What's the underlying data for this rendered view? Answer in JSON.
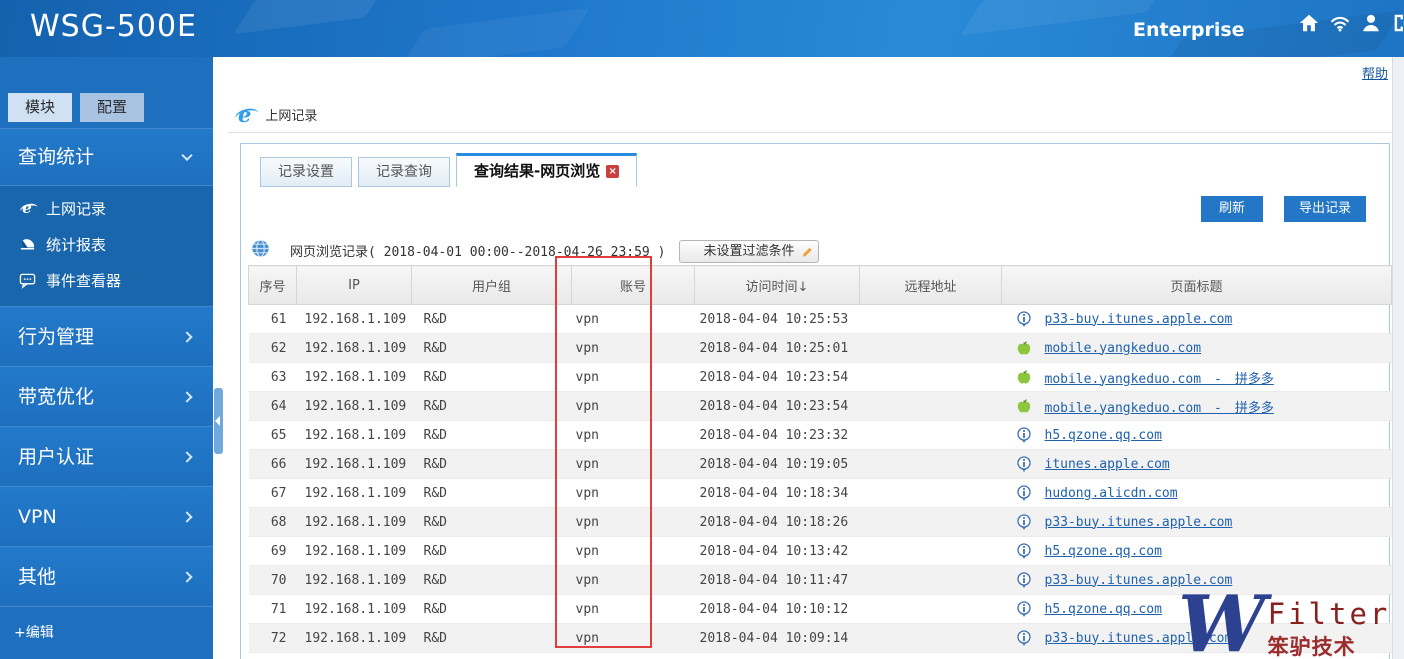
{
  "header": {
    "title": "WSG-500E",
    "edition": "Enterprise",
    "icons": [
      "home-icon",
      "wifi-icon",
      "user-icon",
      "logout-icon"
    ]
  },
  "help_label": "帮助",
  "sidebar": {
    "tabs": [
      {
        "label": "模块",
        "active": true
      },
      {
        "label": "配置",
        "active": false
      }
    ],
    "groups": [
      {
        "id": "query-stats",
        "label": "查询统计",
        "expanded": true,
        "items": [
          {
            "icon": "ie-icon",
            "label": "上网记录"
          },
          {
            "icon": "chart-icon",
            "label": "统计报表"
          },
          {
            "icon": "message-icon",
            "label": "事件查看器"
          }
        ]
      },
      {
        "id": "behavior",
        "label": "行为管理",
        "expanded": false
      },
      {
        "id": "bandwidth",
        "label": "带宽优化",
        "expanded": false
      },
      {
        "id": "auth",
        "label": "用户认证",
        "expanded": false
      },
      {
        "id": "vpn",
        "label": "VPN",
        "expanded": false
      },
      {
        "id": "other",
        "label": "其他",
        "expanded": false
      }
    ],
    "edit_label": "+编辑"
  },
  "page": {
    "title": "上网记录"
  },
  "tabs": [
    {
      "label": "记录设置",
      "active": false
    },
    {
      "label": "记录查询",
      "active": false
    },
    {
      "label": "查询结果-网页浏览",
      "active": true,
      "closable": true
    }
  ],
  "toolbar": {
    "refresh_label": "刷新",
    "export_label": "导出记录"
  },
  "filter": {
    "summary": "网页浏览记录( 2018-04-01 00:00--2018-04-26 23:59 )",
    "button_label": "未设置过滤条件"
  },
  "table": {
    "columns": [
      "序号",
      "IP",
      "用户组",
      "账号",
      "访问时间↓",
      "远程地址",
      "页面标题"
    ],
    "rows": [
      {
        "no": "61",
        "ip": "192.168.1.109",
        "group": "R&D",
        "account": "vpn",
        "time": "2018-04-04 10:25:53",
        "remote": "",
        "icon": "info-icon",
        "title": "p33-buy.itunes.apple.com"
      },
      {
        "no": "62",
        "ip": "192.168.1.109",
        "group": "R&D",
        "account": "vpn",
        "time": "2018-04-04 10:25:01",
        "remote": "",
        "icon": "apple-icon",
        "title": "mobile.yangkeduo.com"
      },
      {
        "no": "63",
        "ip": "192.168.1.109",
        "group": "R&D",
        "account": "vpn",
        "time": "2018-04-04 10:23:54",
        "remote": "",
        "icon": "apple-icon",
        "title": "mobile.yangkeduo.com　-　拼多多"
      },
      {
        "no": "64",
        "ip": "192.168.1.109",
        "group": "R&D",
        "account": "vpn",
        "time": "2018-04-04 10:23:54",
        "remote": "",
        "icon": "apple-icon",
        "title": "mobile.yangkeduo.com　-　拼多多"
      },
      {
        "no": "65",
        "ip": "192.168.1.109",
        "group": "R&D",
        "account": "vpn",
        "time": "2018-04-04 10:23:32",
        "remote": "",
        "icon": "info-icon",
        "title": "h5.qzone.qq.com"
      },
      {
        "no": "66",
        "ip": "192.168.1.109",
        "group": "R&D",
        "account": "vpn",
        "time": "2018-04-04 10:19:05",
        "remote": "",
        "icon": "info-icon",
        "title": "itunes.apple.com"
      },
      {
        "no": "67",
        "ip": "192.168.1.109",
        "group": "R&D",
        "account": "vpn",
        "time": "2018-04-04 10:18:34",
        "remote": "",
        "icon": "info-icon",
        "title": "hudong.alicdn.com"
      },
      {
        "no": "68",
        "ip": "192.168.1.109",
        "group": "R&D",
        "account": "vpn",
        "time": "2018-04-04 10:18:26",
        "remote": "",
        "icon": "info-icon",
        "title": "p33-buy.itunes.apple.com"
      },
      {
        "no": "69",
        "ip": "192.168.1.109",
        "group": "R&D",
        "account": "vpn",
        "time": "2018-04-04 10:13:42",
        "remote": "",
        "icon": "info-icon",
        "title": "h5.qzone.qq.com"
      },
      {
        "no": "70",
        "ip": "192.168.1.109",
        "group": "R&D",
        "account": "vpn",
        "time": "2018-04-04 10:11:47",
        "remote": "",
        "icon": "info-icon",
        "title": "p33-buy.itunes.apple.com"
      },
      {
        "no": "71",
        "ip": "192.168.1.109",
        "group": "R&D",
        "account": "vpn",
        "time": "2018-04-04 10:10:12",
        "remote": "",
        "icon": "info-icon",
        "title": "h5.qzone.qq.com"
      },
      {
        "no": "72",
        "ip": "192.168.1.109",
        "group": "R&D",
        "account": "vpn",
        "time": "2018-04-04 10:09:14",
        "remote": "",
        "icon": "info-icon",
        "title": "p33-buy.itunes.apple.com"
      }
    ]
  },
  "annotation": {
    "shape": "red-rectangle",
    "highlights_column": "账号"
  },
  "watermark": {
    "letter": "W",
    "brand": "Filter",
    "company": "笨驴技术"
  },
  "colors": {
    "header_blue": "#1f77cc",
    "sidebar_blue": "#1e6fbe",
    "button_blue": "#2377c6",
    "link_blue": "#2161ad",
    "annotation_red": "#e23c3c",
    "active_tab_bar": "#2b8be0"
  }
}
